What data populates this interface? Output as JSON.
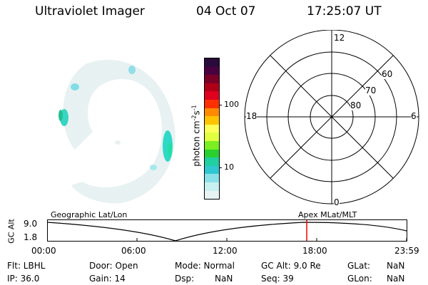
{
  "header": {
    "instrument": "Ultraviolet Imager",
    "date": "04 Oct 07",
    "time": "17:25:07 UT"
  },
  "colorbar": {
    "label": "photon cm",
    "label_sup": "-2",
    "label_s": "s",
    "label_sup2": "-1",
    "tick_100": "100",
    "tick_10": "10",
    "colors": [
      "#2a0a3a",
      "#4a0040",
      "#7a0028",
      "#b00018",
      "#e00020",
      "#ff3000",
      "#ff8a00",
      "#ffc400",
      "#ffff5a",
      "#e0ff40",
      "#7aee20",
      "#2ad030",
      "#20d0a0",
      "#30c8d0",
      "#8ae0e8",
      "#c8f0f0",
      "#e8f4f4"
    ]
  },
  "polar": {
    "lat_80": "80",
    "lat_70": "70",
    "lat_60": "60",
    "mlt_12": "12",
    "mlt_18": "18",
    "mlt_6": "6",
    "mlt_0": "0"
  },
  "timeline": {
    "ylabel": "GC Alt",
    "y_top": "9.0",
    "y_bottom": "1.8",
    "left_label": "Geographic Lat/Lon",
    "right_label": "Apex MLat/MLT",
    "x_ticks": [
      "00:00",
      "06:00",
      "12:00",
      "18:00",
      "23:59"
    ],
    "marker_color": "#ff0000"
  },
  "info": {
    "flt": "Flt: LBHL",
    "door": "Door: Open",
    "mode": "Mode: Normal",
    "gcalt": "GC Alt: 9.0 Re",
    "glat_label": "GLat:",
    "glat_value": "NaN",
    "ip": "IP: 36.0",
    "gain": "Gain: 14",
    "dsp_label": "Dsp:",
    "dsp_value": "NaN",
    "seq": "Seq: 39",
    "glon_label": "GLon:",
    "glon_value": "NaN"
  }
}
